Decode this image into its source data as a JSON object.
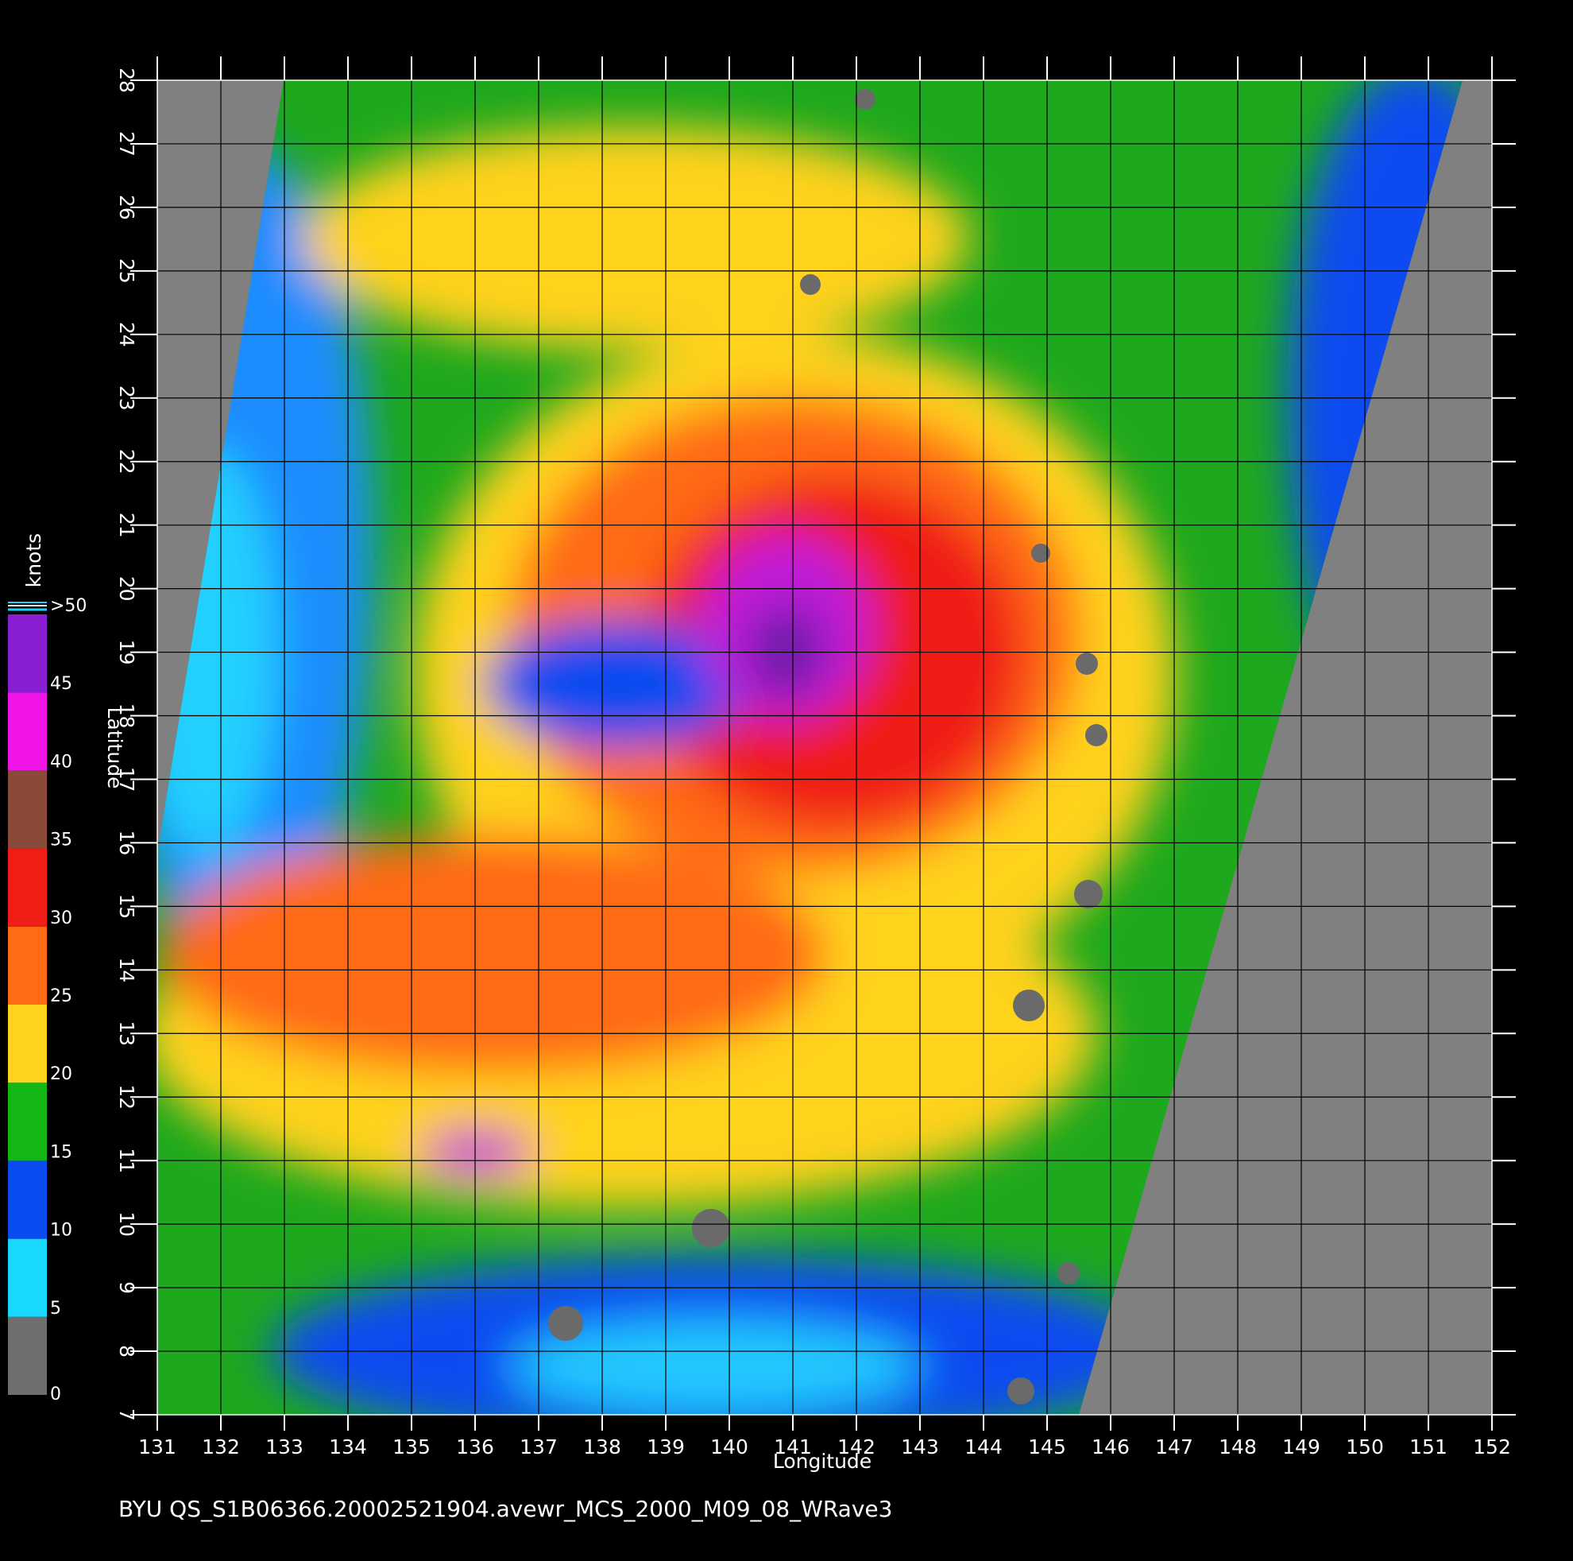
{
  "chart_data": {
    "type": "map",
    "xlabel": "Longitude",
    "ylabel": "Latitude",
    "xlim": [
      131,
      152
    ],
    "ylim": [
      7,
      28
    ],
    "xticks": [
      131,
      132,
      133,
      134,
      135,
      136,
      137,
      138,
      139,
      140,
      141,
      142,
      143,
      144,
      145,
      146,
      147,
      148,
      149,
      150,
      151,
      152
    ],
    "yticks": [
      7,
      8,
      9,
      10,
      11,
      12,
      13,
      14,
      15,
      16,
      17,
      18,
      19,
      20,
      21,
      22,
      23,
      24,
      25,
      26,
      27,
      28
    ],
    "grid": true,
    "grid_color": "#000000",
    "colorbar": {
      "label": "knots",
      "lim": [
        0,
        50
      ],
      "ticks": [
        0,
        5,
        10,
        15,
        20,
        25,
        30,
        35,
        40,
        45,
        {
          "value": 50,
          "label": ">50"
        }
      ],
      "colors": [
        "#6e6e6e",
        "#18d8ff",
        "#0a4cf0",
        "#14b814",
        "#ffd21e",
        "#ff6a14",
        "#f01e14",
        "#8a4a3a",
        "#f014e6",
        "#8a1ed2"
      ]
    },
    "caption": "BYU  QS_S1B06366.20002521904.avewr_MCS_2000_M09_08_WRave3"
  }
}
